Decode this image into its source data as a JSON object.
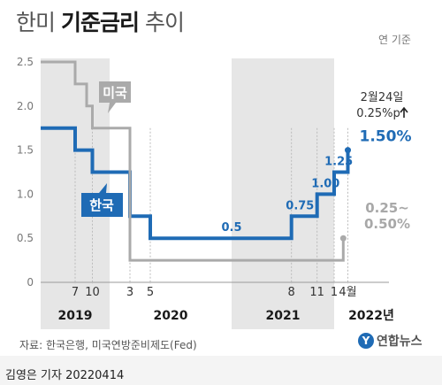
{
  "header": {
    "title_pre": "한미",
    "title_bold": "기준금리",
    "title_post": "추이",
    "unit": "연 기준"
  },
  "chart_data": {
    "type": "line",
    "y_ticks": [
      0,
      0.5,
      1.0,
      1.5,
      2.0,
      2.5
    ],
    "y_tick_labels": [
      "0",
      "0.5",
      "1.0",
      "1.5",
      "2.0",
      "2.5"
    ],
    "ylim": [
      0,
      2.5
    ],
    "x_month_ticks": [
      {
        "label": "7",
        "year": 2019,
        "month": 7
      },
      {
        "label": "10",
        "year": 2019,
        "month": 10
      },
      {
        "label": "3",
        "year": 2020,
        "month": 3
      },
      {
        "label": "5",
        "year": 2020,
        "month": 5
      },
      {
        "label": "8",
        "year": 2021,
        "month": 8
      },
      {
        "label": "11",
        "year": 2021,
        "month": 11
      },
      {
        "label": "1",
        "year": 2022,
        "month": 1
      },
      {
        "label": "4월",
        "year": 2022,
        "month": 4
      }
    ],
    "x_year_labels": [
      "2019",
      "2020",
      "2021",
      "2022년"
    ],
    "series": [
      {
        "name": "한국",
        "color": "#1f6bb5",
        "points": [
          {
            "date": "2019-01",
            "value": 1.75
          },
          {
            "date": "2019-07",
            "value": 1.75
          },
          {
            "date": "2019-07",
            "value": 1.5
          },
          {
            "date": "2019-10",
            "value": 1.5
          },
          {
            "date": "2019-10",
            "value": 1.25
          },
          {
            "date": "2020-03",
            "value": 1.25
          },
          {
            "date": "2020-03",
            "value": 0.75
          },
          {
            "date": "2020-05",
            "value": 0.75
          },
          {
            "date": "2020-05",
            "value": 0.5
          },
          {
            "date": "2021-08",
            "value": 0.5
          },
          {
            "date": "2021-08",
            "value": 0.75
          },
          {
            "date": "2021-11",
            "value": 0.75
          },
          {
            "date": "2021-11",
            "value": 1.0
          },
          {
            "date": "2022-01",
            "value": 1.0
          },
          {
            "date": "2022-01",
            "value": 1.25
          },
          {
            "date": "2022-04",
            "value": 1.25
          },
          {
            "date": "2022-04",
            "value": 1.5
          }
        ],
        "step_labels": [
          {
            "text": "0.5",
            "date": "2021-01",
            "value": 0.5
          },
          {
            "text": "0.75",
            "date": "2021-09",
            "value": 0.75
          },
          {
            "text": "1.00",
            "date": "2021-12",
            "value": 1.0
          },
          {
            "text": "1.25",
            "date": "2022-02",
            "value": 1.25
          },
          {
            "text": "1.50%",
            "date": "2022-04",
            "value": 1.5
          }
        ]
      },
      {
        "name": "미국",
        "color": "#aaaaaa",
        "points": [
          {
            "date": "2019-01",
            "value": 2.5
          },
          {
            "date": "2019-07",
            "value": 2.5
          },
          {
            "date": "2019-07",
            "value": 2.25
          },
          {
            "date": "2019-09",
            "value": 2.25
          },
          {
            "date": "2019-09",
            "value": 2.0
          },
          {
            "date": "2019-10",
            "value": 2.0
          },
          {
            "date": "2019-10",
            "value": 1.75
          },
          {
            "date": "2020-03",
            "value": 1.75
          },
          {
            "date": "2020-03",
            "value": 0.25
          },
          {
            "date": "2022-03",
            "value": 0.25
          },
          {
            "date": "2022-03",
            "value": 0.5
          }
        ],
        "end_label": "0.25~\n0.50%"
      }
    ],
    "annotation": {
      "date_text": "2월24일",
      "change_text": "0.25%p",
      "arrow": "up"
    },
    "shaded_years": [
      2019,
      2021
    ]
  },
  "footer": {
    "source": "자료: 한국은행, 미국연방준비제도(Fed)",
    "logo": "연합뉴스",
    "credit": "김영은 기자  20220414"
  }
}
